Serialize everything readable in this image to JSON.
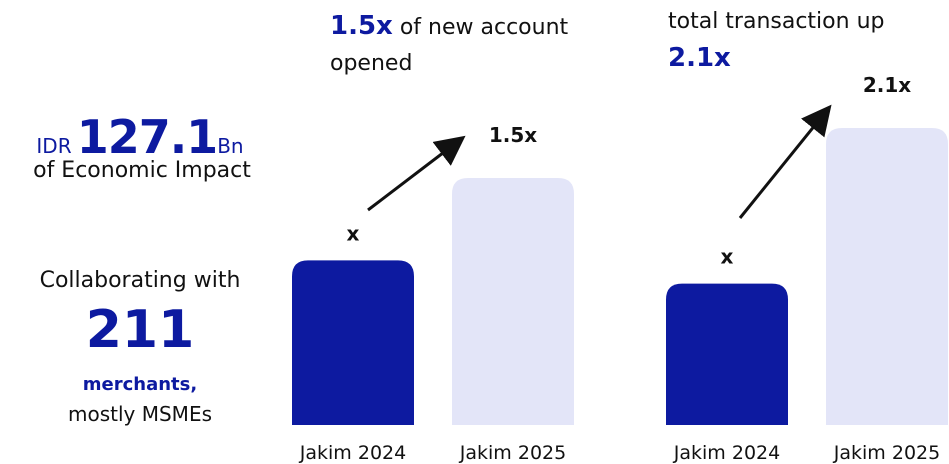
{
  "stats": {
    "currency": "IDR",
    "amount": "127.1",
    "unit": "Bn",
    "amount_caption": "of Economic Impact",
    "collab_intro": "Collaborating with",
    "merchant_count": "211",
    "merchant_word": "merchants,",
    "merchant_note": "mostly MSMEs"
  },
  "chart_data": [
    {
      "type": "bar",
      "title_emphasis": "1.5x",
      "title": "of new account opened",
      "categories": [
        "Jakim 2024",
        "Jakim 2025"
      ],
      "values": [
        1,
        1.5
      ],
      "value_labels": [
        "x",
        "1.5x"
      ],
      "colors": [
        "#0d1aa0",
        "#e3e5f8"
      ]
    },
    {
      "type": "bar",
      "title": "total transaction up",
      "title_emphasis": "2.1x",
      "categories": [
        "Jakim 2024",
        "Jakim 2025"
      ],
      "values": [
        1,
        2.1
      ],
      "value_labels": [
        "x",
        "2.1x"
      ],
      "colors": [
        "#0d1aa0",
        "#e3e5f8"
      ]
    }
  ]
}
